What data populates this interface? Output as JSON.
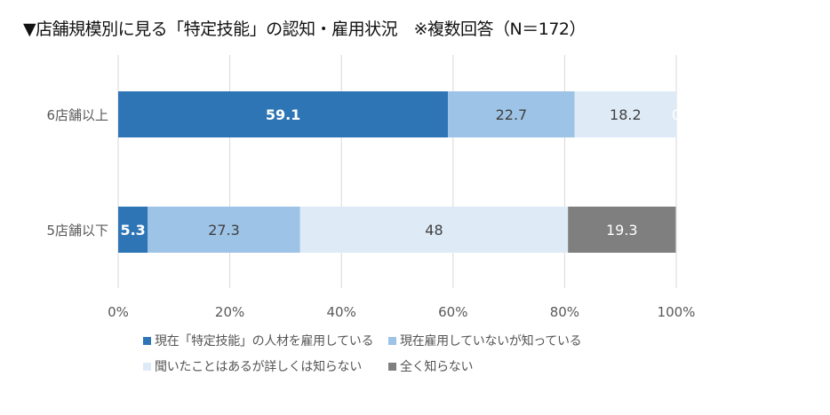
{
  "chart_data": {
    "type": "bar",
    "orientation": "horizontal",
    "stacked": "percent",
    "title": "▼店舗規模別に見る「特定技能」の認知・雇用状況　※複数回答（N＝172）",
    "categories": [
      "6店舗以上",
      "5店舗以下"
    ],
    "series": [
      {
        "name": "現在「特定技能」の人材を雇用している",
        "values": [
          59.1,
          5.3
        ],
        "color": "#2E75B6",
        "label_color": "#ffffff"
      },
      {
        "name": "現在雇用していないが知っている",
        "values": [
          22.7,
          27.3
        ],
        "color": "#9DC3E6",
        "label_color": "#404040"
      },
      {
        "name": "聞いたことはあるが詳しくは知らない",
        "values": [
          18.2,
          48
        ],
        "color": "#DEEBF7",
        "label_color": "#404040"
      },
      {
        "name": "全く知らない",
        "values": [
          0,
          19.3
        ],
        "color": "#7F7F7F",
        "label_color": "#ffffff"
      }
    ],
    "xlim": [
      0,
      100
    ],
    "xticks": [
      "0%",
      "20%",
      "40%",
      "60%",
      "80%",
      "100%"
    ],
    "grid": true,
    "legend": "bottom"
  }
}
